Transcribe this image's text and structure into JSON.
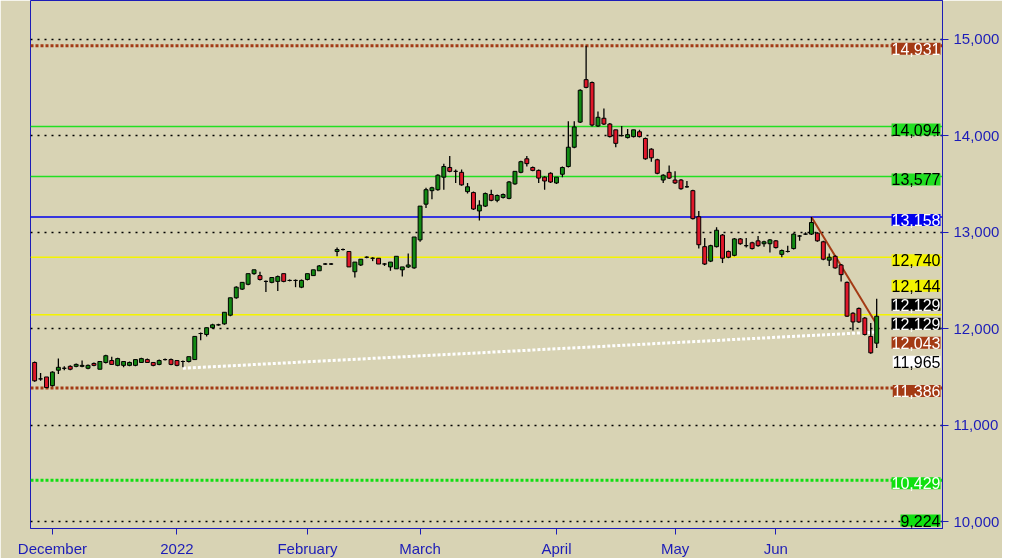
{
  "chart_data": {
    "type": "candlestick",
    "categories": [
      null,
      null,
      null,
      "December",
      null,
      null,
      null,
      null,
      null,
      null,
      null,
      null,
      null,
      null,
      null,
      null,
      null,
      null,
      null,
      null,
      null,
      null,
      null,
      null,
      "2022",
      null,
      null,
      null,
      null,
      null,
      null,
      null,
      null,
      null,
      null,
      null,
      null,
      null,
      null,
      null,
      null,
      null,
      null,
      null,
      null,
      null,
      "February",
      null,
      null,
      null,
      null,
      null,
      null,
      null,
      null,
      null,
      null,
      null,
      null,
      null,
      null,
      null,
      null,
      null,
      null,
      "March",
      null,
      null,
      null,
      null,
      null,
      null,
      null,
      null,
      null,
      null,
      null,
      null,
      null,
      null,
      null,
      null,
      null,
      null,
      null,
      null,
      null,
      null,
      "April",
      null,
      null,
      null,
      null,
      null,
      null,
      null,
      null,
      null,
      null,
      null,
      null,
      null,
      null,
      null,
      null,
      null,
      null,
      null,
      "May",
      null,
      null,
      null,
      null,
      null,
      null,
      null,
      null,
      null,
      null,
      null,
      null,
      null,
      null,
      null,
      null,
      "Jun",
      null,
      null,
      null,
      null,
      null,
      null,
      null,
      null,
      null,
      null,
      null,
      null,
      null,
      null,
      null,
      null,
      null
    ],
    "ohlc": [
      [
        11650,
        11660,
        11450,
        11460
      ],
      [
        11480,
        11540,
        11460,
        11480
      ],
      [
        11500,
        11500,
        11386,
        11390
      ],
      [
        11410,
        11560,
        11400,
        11550
      ],
      [
        11570,
        11690,
        11530,
        11600
      ],
      [
        11590,
        11610,
        11570,
        11590
      ],
      [
        11610,
        11620,
        11570,
        11580
      ],
      [
        11610,
        11640,
        11600,
        11630
      ],
      [
        11610,
        11670,
        11600,
        11620
      ],
      [
        11590,
        11630,
        11580,
        11620
      ],
      [
        11640,
        11650,
        11610,
        11620
      ],
      [
        11580,
        11660,
        11580,
        11660
      ],
      [
        11650,
        11730,
        11640,
        11720
      ],
      [
        11670,
        11710,
        11630,
        11630
      ],
      [
        11620,
        11700,
        11610,
        11690
      ],
      [
        11620,
        11660,
        11600,
        11660
      ],
      [
        11620,
        11660,
        11610,
        11650
      ],
      [
        11620,
        11680,
        11610,
        11680
      ],
      [
        11650,
        11700,
        11650,
        11690
      ],
      [
        11680,
        11690,
        11650,
        11650
      ],
      [
        11650,
        11650,
        11610,
        11620
      ],
      [
        11630,
        11680,
        11620,
        11670
      ],
      [
        11680,
        11690,
        11670,
        11680
      ],
      [
        11680,
        11690,
        11620,
        11630
      ],
      [
        11670,
        11670,
        11610,
        11620
      ],
      [
        11660,
        11670,
        11600,
        11660
      ],
      [
        11660,
        11710,
        11650,
        11710
      ],
      [
        11680,
        11920,
        11680,
        11920
      ],
      [
        11950,
        11960,
        11880,
        11950
      ],
      [
        11940,
        12010,
        11920,
        12010
      ],
      [
        12010,
        12050,
        12000,
        12040
      ],
      [
        12040,
        12050,
        12030,
        12040
      ],
      [
        12050,
        12170,
        12040,
        12170
      ],
      [
        12140,
        12320,
        12130,
        12320
      ],
      [
        12320,
        12440,
        12310,
        12430
      ],
      [
        12410,
        12480,
        12400,
        12480
      ],
      [
        12460,
        12570,
        12450,
        12570
      ],
      [
        12570,
        12610,
        12560,
        12610
      ],
      [
        12550,
        12590,
        12500,
        12510
      ],
      [
        12490,
        12500,
        12380,
        12490
      ],
      [
        12480,
        12530,
        12470,
        12530
      ],
      [
        12490,
        12550,
        12390,
        12540
      ],
      [
        12570,
        12570,
        12480,
        12490
      ],
      [
        12500,
        12510,
        12490,
        12500
      ],
      [
        12500,
        12510,
        12430,
        12500
      ],
      [
        12430,
        12510,
        12420,
        12500
      ],
      [
        12510,
        12570,
        12500,
        12570
      ],
      [
        12550,
        12610,
        12550,
        12610
      ],
      [
        12600,
        12660,
        12600,
        12650
      ],
      [
        12670,
        12680,
        12660,
        12670
      ],
      [
        12670,
        12680,
        12660,
        12670
      ],
      [
        12800,
        12840,
        12750,
        12820
      ],
      [
        12820,
        12830,
        12810,
        12820
      ],
      [
        12800,
        12800,
        12640,
        12640
      ],
      [
        12590,
        12690,
        12530,
        12690
      ],
      [
        12660,
        12720,
        12650,
        12720
      ],
      [
        12740,
        12750,
        12730,
        12740
      ],
      [
        12730,
        12740,
        12700,
        12730
      ],
      [
        12730,
        12730,
        12670,
        12670
      ],
      [
        12670,
        12680,
        12650,
        12670
      ],
      [
        12640,
        12690,
        12600,
        12690
      ],
      [
        12620,
        12750,
        12620,
        12750
      ],
      [
        12610,
        12640,
        12540,
        12640
      ],
      [
        12640,
        12780,
        12630,
        12660
      ],
      [
        12630,
        12950,
        12620,
        12950
      ],
      [
        12920,
        13270,
        12900,
        13270
      ],
      [
        13290,
        13460,
        13250,
        13440
      ],
      [
        13430,
        13470,
        13340,
        13460
      ],
      [
        13440,
        13600,
        13430,
        13590
      ],
      [
        13570,
        13710,
        13440,
        13680
      ],
      [
        13670,
        13790,
        13620,
        13630
      ],
      [
        13630,
        13650,
        13510,
        13630
      ],
      [
        13620,
        13650,
        13480,
        13490
      ],
      [
        13420,
        13510,
        13400,
        13470
      ],
      [
        13410,
        13420,
        13230,
        13240
      ],
      [
        13220,
        13330,
        13120,
        13280
      ],
      [
        13270,
        13410,
        13260,
        13400
      ],
      [
        13390,
        13440,
        13320,
        13330
      ],
      [
        13330,
        13390,
        13310,
        13380
      ],
      [
        13360,
        13400,
        13350,
        13390
      ],
      [
        13350,
        13530,
        13340,
        13520
      ],
      [
        13500,
        13630,
        13490,
        13630
      ],
      [
        13620,
        13740,
        13610,
        13730
      ],
      [
        13760,
        13790,
        13680,
        13710
      ],
      [
        13670,
        13680,
        13630,
        13640
      ],
      [
        13640,
        13650,
        13510,
        13560
      ],
      [
        13570,
        13580,
        13440,
        13530
      ],
      [
        13610,
        13620,
        13510,
        13520
      ],
      [
        13510,
        13570,
        13500,
        13570
      ],
      [
        13600,
        13680,
        13570,
        13670
      ],
      [
        13680,
        14150,
        13670,
        13880
      ],
      [
        13880,
        14150,
        13870,
        14090
      ],
      [
        14140,
        14480,
        14130,
        14470
      ],
      [
        14580,
        14931,
        14490,
        14500
      ],
      [
        14550,
        14560,
        14094,
        14110
      ],
      [
        14100,
        14250,
        14090,
        14190
      ],
      [
        14180,
        14280,
        14110,
        14120
      ],
      [
        14120,
        14130,
        13980,
        13990
      ],
      [
        14060,
        14060,
        13880,
        13920
      ],
      [
        14000,
        14100,
        13990,
        14000
      ],
      [
        13980,
        14070,
        13970,
        14010
      ],
      [
        13990,
        14060,
        13980,
        14060
      ],
      [
        14040,
        14060,
        13980,
        13990
      ],
      [
        13970,
        13980,
        13750,
        13760
      ],
      [
        13860,
        13870,
        13730,
        13770
      ],
      [
        13750,
        13760,
        13600,
        13610
      ],
      [
        13540,
        13600,
        13510,
        13590
      ],
      [
        13620,
        13690,
        13550,
        13560
      ],
      [
        13540,
        13630,
        13500,
        13510
      ],
      [
        13540,
        13550,
        13440,
        13450
      ],
      [
        13470,
        13530,
        13460,
        13470
      ],
      [
        13430,
        13440,
        13130,
        13140
      ],
      [
        13160,
        13220,
        12830,
        12870
      ],
      [
        12850,
        12940,
        12660,
        12670
      ],
      [
        12700,
        12870,
        12690,
        12860
      ],
      [
        12850,
        13050,
        12840,
        13020
      ],
      [
        12970,
        12980,
        12680,
        12730
      ],
      [
        12800,
        12810,
        12730,
        12740
      ],
      [
        12760,
        12940,
        12750,
        12930
      ],
      [
        12930,
        12940,
        12870,
        12880
      ],
      [
        12860,
        12940,
        12840,
        12860
      ],
      [
        12890,
        12900,
        12820,
        12830
      ],
      [
        12910,
        12960,
        12850,
        12860
      ],
      [
        12880,
        12910,
        12850,
        12900
      ],
      [
        12880,
        12930,
        12790,
        12920
      ],
      [
        12910,
        12920,
        12830,
        12840
      ],
      [
        12770,
        12820,
        12740,
        12810
      ],
      [
        12800,
        12860,
        12790,
        12800
      ],
      [
        12830,
        12990,
        12820,
        12980
      ],
      [
        12960,
        12970,
        12910,
        12960
      ],
      [
        12980,
        13000,
        12970,
        12980
      ],
      [
        12980,
        13158,
        12970,
        13100
      ],
      [
        12990,
        13000,
        12900,
        12910
      ],
      [
        12900,
        12910,
        12710,
        12720
      ],
      [
        12710,
        12780,
        12650,
        12740
      ],
      [
        12750,
        12760,
        12620,
        12630
      ],
      [
        12660,
        12670,
        12490,
        12560
      ],
      [
        12480,
        12490,
        12120,
        12130
      ],
      [
        12160,
        12170,
        11980,
        12070
      ],
      [
        12210,
        12220,
        12060,
        12070
      ],
      [
        12110,
        12120,
        11930,
        11940
      ],
      [
        11920,
        12060,
        11740,
        11750
      ],
      [
        11850,
        12310,
        11800,
        12129
      ]
    ],
    "series": [
      {
        "type": "line",
        "color": "#ffffff",
        "line_style": "dotted",
        "values": [
          null,
          null,
          null,
          null,
          null,
          null,
          null,
          null,
          null,
          null,
          null,
          null,
          null,
          null,
          null,
          null,
          null,
          null,
          null,
          null,
          null,
          null,
          null,
          null,
          null,
          11590,
          null,
          null,
          null,
          null,
          null,
          null,
          null,
          null,
          null,
          null,
          null,
          null,
          null,
          null,
          null,
          null,
          null,
          null,
          null,
          null,
          null,
          null,
          null,
          null,
          null,
          null,
          null,
          null,
          null,
          null,
          null,
          null,
          null,
          null,
          null,
          null,
          null,
          null,
          null,
          null,
          null,
          null,
          null,
          null,
          null,
          null,
          null,
          null,
          null,
          null,
          null,
          null,
          null,
          null,
          null,
          null,
          null,
          null,
          null,
          null,
          null,
          null,
          null,
          null,
          null,
          null,
          null,
          null,
          null,
          null,
          null,
          null,
          null,
          null,
          null,
          null,
          null,
          null,
          null,
          null,
          null,
          null,
          null,
          null,
          null,
          null,
          null,
          null,
          null,
          null,
          null,
          null,
          null,
          null,
          null,
          null,
          null,
          null,
          null,
          null,
          null,
          null,
          null,
          null,
          null,
          null,
          null,
          null,
          null,
          null,
          null,
          null,
          null,
          null,
          null,
          null,
          11965
        ],
        "value_labels": [
          null,
          null,
          null,
          null,
          null,
          null,
          null,
          null,
          null,
          null,
          null,
          null,
          null,
          null,
          null,
          null,
          null,
          null,
          null,
          null,
          null,
          null,
          null,
          null,
          null,
          null,
          null,
          null,
          null,
          null,
          null,
          null,
          null,
          null,
          null,
          null,
          null,
          null,
          null,
          null,
          null,
          null,
          null,
          null,
          null,
          null,
          null,
          null,
          null,
          null,
          null,
          null,
          null,
          null,
          null,
          null,
          null,
          null,
          null,
          null,
          null,
          null,
          null,
          null,
          null,
          null,
          null,
          null,
          null,
          null,
          null,
          null,
          null,
          null,
          null,
          null,
          null,
          null,
          null,
          null,
          null,
          null,
          null,
          null,
          null,
          null,
          null,
          null,
          null,
          null,
          null,
          null,
          null,
          null,
          null,
          null,
          null,
          null,
          null,
          null,
          null,
          null,
          null,
          null,
          null,
          null,
          null,
          null,
          null,
          null,
          null,
          null,
          null,
          null,
          null,
          null,
          null,
          null,
          null,
          null,
          null,
          null,
          null,
          null,
          null,
          null,
          null,
          null,
          null,
          null,
          null,
          null,
          null,
          null,
          null,
          null,
          null,
          null,
          null,
          null,
          null,
          null,
          "11,965"
        ]
      },
      {
        "type": "line",
        "color": "#a33a14",
        "line_style": "solid",
        "values": [
          null,
          null,
          null,
          null,
          null,
          null,
          null,
          null,
          null,
          null,
          null,
          null,
          null,
          null,
          null,
          null,
          null,
          null,
          null,
          null,
          null,
          null,
          null,
          null,
          null,
          null,
          null,
          null,
          null,
          null,
          null,
          null,
          null,
          null,
          null,
          null,
          null,
          null,
          null,
          null,
          null,
          null,
          null,
          null,
          null,
          null,
          null,
          null,
          null,
          null,
          null,
          null,
          null,
          null,
          null,
          null,
          null,
          null,
          null,
          null,
          null,
          null,
          null,
          null,
          null,
          null,
          null,
          null,
          null,
          null,
          null,
          null,
          null,
          null,
          null,
          null,
          null,
          null,
          null,
          null,
          null,
          null,
          null,
          null,
          null,
          null,
          null,
          null,
          null,
          null,
          null,
          null,
          null,
          null,
          null,
          null,
          null,
          null,
          null,
          null,
          null,
          null,
          null,
          null,
          null,
          null,
          null,
          null,
          null,
          null,
          null,
          null,
          null,
          null,
          null,
          null,
          null,
          null,
          null,
          null,
          null,
          null,
          null,
          null,
          null,
          null,
          null,
          null,
          null,
          null,
          null,
          13158,
          null,
          null,
          null,
          null,
          null,
          null,
          null,
          null,
          null,
          null,
          12043
        ],
        "value_labels": [
          null,
          null,
          null,
          null,
          null,
          null,
          null,
          null,
          null,
          null,
          null,
          null,
          null,
          null,
          null,
          null,
          null,
          null,
          null,
          null,
          null,
          null,
          null,
          null,
          null,
          null,
          null,
          null,
          null,
          null,
          null,
          null,
          null,
          null,
          null,
          null,
          null,
          null,
          null,
          null,
          null,
          null,
          null,
          null,
          null,
          null,
          null,
          null,
          null,
          null,
          null,
          null,
          null,
          null,
          null,
          null,
          null,
          null,
          null,
          null,
          null,
          null,
          null,
          null,
          null,
          null,
          null,
          null,
          null,
          null,
          null,
          null,
          null,
          null,
          null,
          null,
          null,
          null,
          null,
          null,
          null,
          null,
          null,
          null,
          null,
          null,
          null,
          null,
          null,
          null,
          null,
          null,
          null,
          null,
          null,
          null,
          null,
          null,
          null,
          null,
          null,
          null,
          null,
          null,
          null,
          null,
          null,
          null,
          null,
          null,
          null,
          null,
          null,
          null,
          null,
          null,
          null,
          null,
          null,
          null,
          null,
          null,
          null,
          null,
          null,
          null,
          null,
          null,
          null,
          null,
          null,
          null,
          null,
          null,
          null,
          null,
          null,
          null,
          null,
          null,
          null,
          null,
          "12,043"
        ]
      }
    ],
    "ref_lines": [
      {
        "axis": "y",
        "value": 14931,
        "label": "14,931",
        "color": "#a33a14",
        "line_style": "dotted"
      },
      {
        "axis": "y",
        "value": 14094,
        "label": "14,094",
        "color": "#22e022",
        "line_style": "solid"
      },
      {
        "axis": "y",
        "value": 13577,
        "label": "13,577",
        "color": "#22e022",
        "line_style": "solid"
      },
      {
        "axis": "y",
        "value": 13158,
        "label": "13,158",
        "color": "#0000ee",
        "line_style": "solid"
      },
      {
        "axis": "y",
        "value": 12740,
        "label": "12,740",
        "color": "#f4f400",
        "line_style": "solid"
      },
      {
        "axis": "y",
        "value": 12144,
        "label": "12,144",
        "color": "#f4f400",
        "line_style": "solid"
      },
      {
        "axis": "y",
        "value": 11386,
        "label": "11,386",
        "color": "#a33a14",
        "line_style": "dotted"
      },
      {
        "axis": "y",
        "value": 10429,
        "label": "10,429",
        "color": "#10e010",
        "line_style": "dotted"
      }
    ],
    "annotations": [
      {
        "text": "12,129",
        "y": 12129
      },
      {
        "text": "12,129",
        "y": 12129
      },
      "9,224"
    ],
    "ylim": [
      9930,
      15400
    ],
    "yticks": [
      {
        "value": 10000,
        "label": "10,000"
      },
      {
        "value": 11000,
        "label": "11,000"
      },
      {
        "value": 12000,
        "label": "12,000"
      },
      {
        "value": 13000,
        "label": "13,000"
      },
      {
        "value": 14000,
        "label": "14,000"
      },
      {
        "value": 15000,
        "label": "15,000"
      }
    ],
    "grid": "y"
  }
}
